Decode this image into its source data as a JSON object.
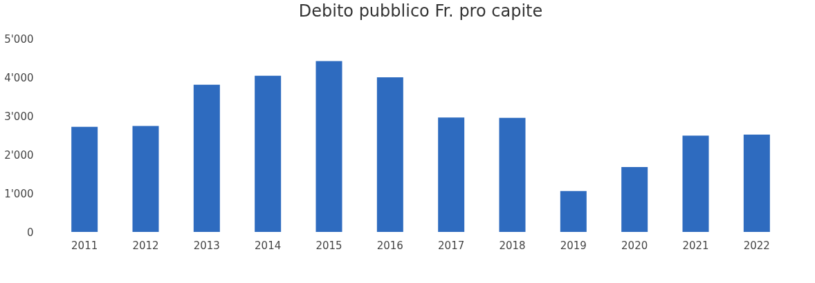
{
  "chart_data": {
    "type": "bar",
    "title": "Debito pubblico Fr. pro capite",
    "categories": [
      "2011",
      "2012",
      "2013",
      "2014",
      "2015",
      "2016",
      "2017",
      "2018",
      "2019",
      "2020",
      "2021",
      "2022"
    ],
    "values": [
      2720,
      2740,
      3810,
      4040,
      4420,
      4000,
      2960,
      2950,
      1060,
      1680,
      2490,
      2520
    ],
    "color": "#2e6bbf",
    "ylim": [
      0,
      5000
    ],
    "yticks": [
      0,
      {
        "value": 1000,
        "label": "1'000"
      },
      {
        "value": 2000,
        "label": "2'000"
      },
      {
        "value": 3000,
        "label": "3'000"
      },
      {
        "value": 4000,
        "label": "4'000"
      },
      {
        "value": 5000,
        "label": "5'000"
      }
    ],
    "grid": false
  }
}
